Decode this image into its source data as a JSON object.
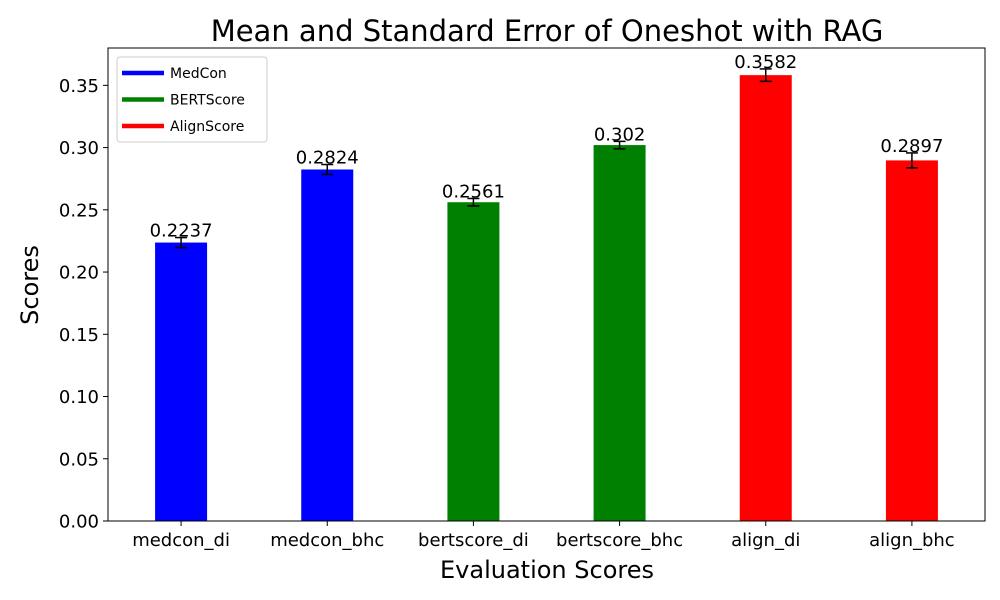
{
  "chart_data": {
    "type": "bar",
    "title": "Mean and Standard Error of Oneshot with RAG",
    "xlabel": "Evaluation Scores",
    "ylabel": "Scores",
    "categories": [
      "medcon_di",
      "medcon_bhc",
      "bertscore_di",
      "bertscore_bhc",
      "align_di",
      "align_bhc"
    ],
    "values": [
      0.2237,
      0.2824,
      0.2561,
      0.302,
      0.3582,
      0.2897
    ],
    "value_labels": [
      "0.2237",
      "0.2824",
      "0.2561",
      "0.302",
      "0.3582",
      "0.2897"
    ],
    "errors": [
      0.004,
      0.004,
      0.003,
      0.003,
      0.005,
      0.006
    ],
    "bar_colors": [
      "#0000ff",
      "#0000ff",
      "#008000",
      "#008000",
      "#ff0000",
      "#ff0000"
    ],
    "ylim": [
      0,
      0.38
    ],
    "yticks": [
      0.0,
      0.05,
      0.1,
      0.15,
      0.2,
      0.25,
      0.3,
      0.35
    ],
    "ytick_labels": [
      "0.00",
      "0.05",
      "0.10",
      "0.15",
      "0.20",
      "0.25",
      "0.30",
      "0.35"
    ],
    "grid": false,
    "legend": {
      "placement": "top-left",
      "entries": [
        {
          "name": "MedCon",
          "color": "#0000ff"
        },
        {
          "name": "BERTScore",
          "color": "#008000"
        },
        {
          "name": "AlignScore",
          "color": "#ff0000"
        }
      ]
    }
  }
}
